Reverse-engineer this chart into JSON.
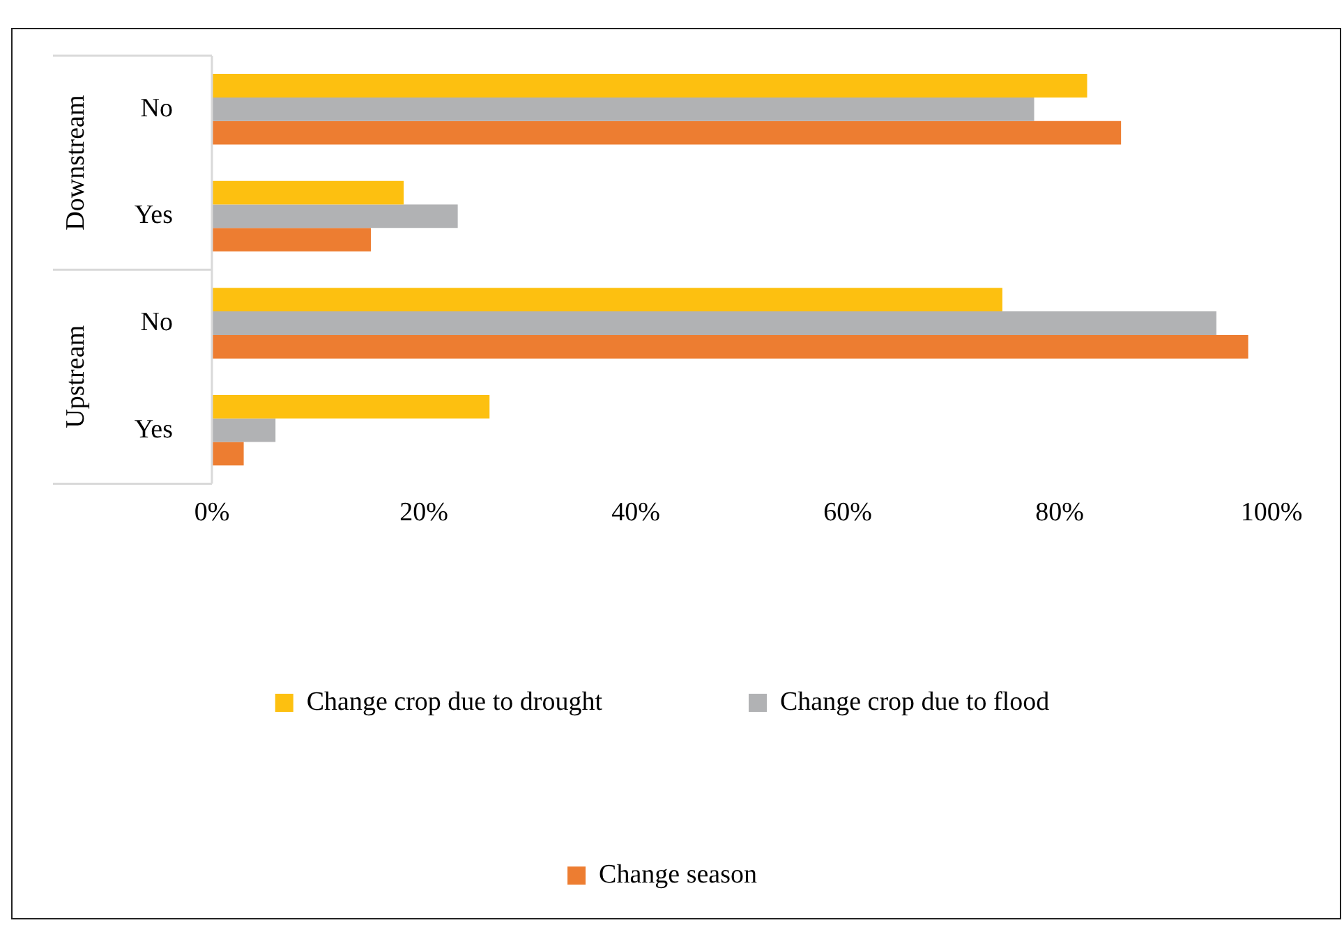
{
  "chart_data": {
    "type": "bar",
    "orientation": "horizontal",
    "categories": [
      "No",
      "Yes",
      "No",
      "Yes"
    ],
    "annotations": [
      "Downstream",
      "Upstream"
    ],
    "series": [
      {
        "name": "Change crop due to drought",
        "color": "#fdc010",
        "values": [
          82.6,
          18.1,
          74.6,
          26.2
        ]
      },
      {
        "name": "Change crop due to flood",
        "color": "#b1b2b4",
        "values": [
          77.6,
          23.2,
          94.8,
          6.0
        ]
      },
      {
        "name": "Change season",
        "color": "#ed7d31",
        "values": [
          85.8,
          15.0,
          97.8,
          3.0
        ]
      }
    ],
    "xlim": [
      0,
      100
    ],
    "xticks": [
      {
        "value": 0,
        "label": "0%"
      },
      {
        "value": 20,
        "label": "20%"
      },
      {
        "value": 40,
        "label": "40%"
      },
      {
        "value": 60,
        "label": "60%"
      },
      {
        "value": 80,
        "label": "80%"
      },
      {
        "value": 100,
        "label": "100%"
      }
    ],
    "grid": false,
    "legend": "bottom"
  }
}
